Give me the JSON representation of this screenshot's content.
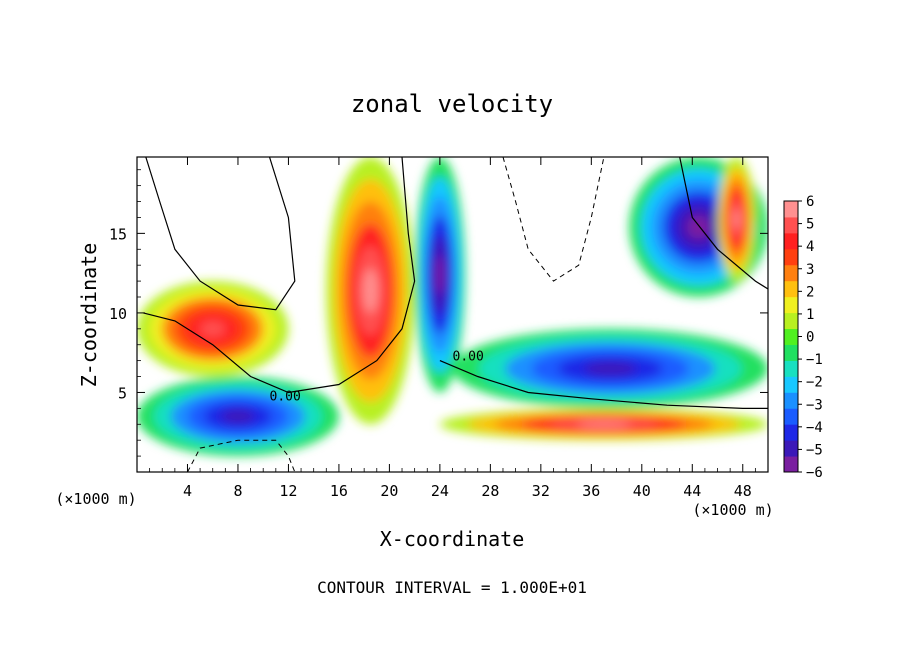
{
  "chart_data": {
    "type": "heatmap",
    "title": "zonal velocity",
    "xlabel": "X-coordinate",
    "ylabel": "Z-coordinate",
    "x_unit": "(×1000 m)",
    "y_unit": "(×1000 m)",
    "footer": "CONTOUR INTERVAL = 1.000E+01",
    "xlim": [
      0,
      50
    ],
    "ylim": [
      0,
      19.8
    ],
    "x_ticks": [
      4,
      8,
      12,
      16,
      20,
      24,
      28,
      32,
      36,
      40,
      44,
      48
    ],
    "y_ticks": [
      5,
      10,
      15
    ],
    "colorbar": {
      "min": -6,
      "max": 6,
      "tick_labels": [
        "6",
        "5",
        "4",
        "3",
        "2",
        "1",
        "0",
        "−1",
        "−2",
        "−3",
        "−4",
        "−5",
        "−6"
      ],
      "colors": [
        "#7a1fa0",
        "#3c19b8",
        "#1e28e6",
        "#1a5cff",
        "#1a90ff",
        "#18c8ff",
        "#18e0c0",
        "#20e060",
        "#50f020",
        "#b8f020",
        "#f0f020",
        "#ffc010",
        "#ff8010",
        "#ff4010",
        "#ff2020",
        "#ff5050",
        "#ff9090"
      ]
    },
    "contour_labels": [
      "0.00",
      "0.00"
    ],
    "features": [
      {
        "kind": "positive core",
        "x": [
          15,
          22
        ],
        "z": [
          3,
          19.8
        ],
        "peak": 6
      },
      {
        "kind": "negative core",
        "x": [
          22,
          26
        ],
        "z": [
          5,
          19.8
        ],
        "peak": -6
      },
      {
        "kind": "negative core",
        "x": [
          39,
          50
        ],
        "z": [
          11,
          19.8
        ],
        "peak": -6
      },
      {
        "kind": "positive core",
        "x": [
          46,
          49
        ],
        "z": [
          12,
          19.8
        ],
        "peak": 6
      },
      {
        "kind": "negative layer",
        "x": [
          25,
          50
        ],
        "z": [
          4,
          9
        ],
        "peak": -5
      },
      {
        "kind": "positive layer",
        "x": [
          0,
          12
        ],
        "z": [
          6,
          12
        ],
        "peak": 5
      },
      {
        "kind": "positive layer",
        "x": [
          24,
          50
        ],
        "z": [
          2,
          4
        ],
        "peak": 6
      },
      {
        "kind": "negative layer",
        "x": [
          0,
          16
        ],
        "z": [
          1,
          6
        ],
        "peak": -5
      }
    ]
  }
}
